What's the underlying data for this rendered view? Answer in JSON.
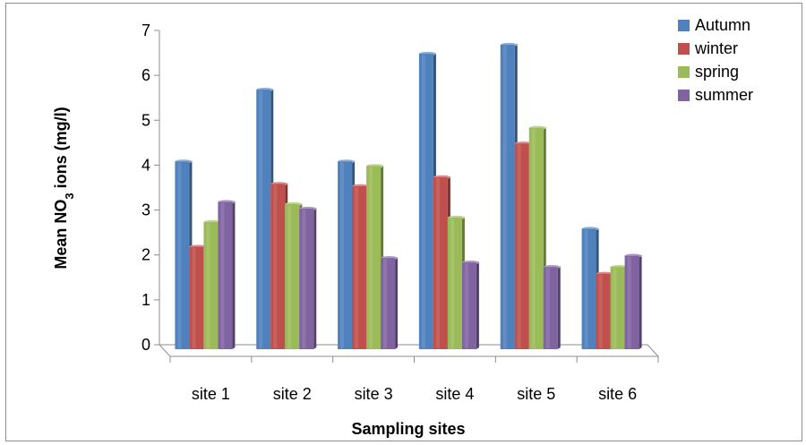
{
  "chart_data": {
    "type": "bar",
    "categories": [
      "site 1",
      "site 2",
      "site 3",
      "site 4",
      "site 5",
      "site 6"
    ],
    "series": [
      {
        "name": "Autumn",
        "values": [
          4.1,
          5.7,
          4.1,
          6.5,
          6.7,
          2.6
        ],
        "color": "#4f81bd"
      },
      {
        "name": "winter",
        "values": [
          2.2,
          3.6,
          3.55,
          3.75,
          4.5,
          1.6
        ],
        "color": "#c0504d"
      },
      {
        "name": "spring",
        "values": [
          2.75,
          3.15,
          4.0,
          2.85,
          4.85,
          1.75
        ],
        "color": "#9bbb59"
      },
      {
        "name": "summer",
        "values": [
          3.2,
          3.05,
          1.95,
          1.85,
          1.75,
          2.0
        ],
        "color": "#8064a2"
      }
    ],
    "xlabel": "Sampling sites",
    "ylabel_parts": {
      "before": "Mean NO",
      "sub": "3",
      "after": " ions (mg/l)"
    },
    "ylim": [
      0,
      7
    ],
    "yticks": [
      "0",
      "1",
      "2",
      "3",
      "4",
      "5",
      "6",
      "7"
    ],
    "grid": false,
    "legend_position": "top-right",
    "style": "3d-clustered-column"
  }
}
